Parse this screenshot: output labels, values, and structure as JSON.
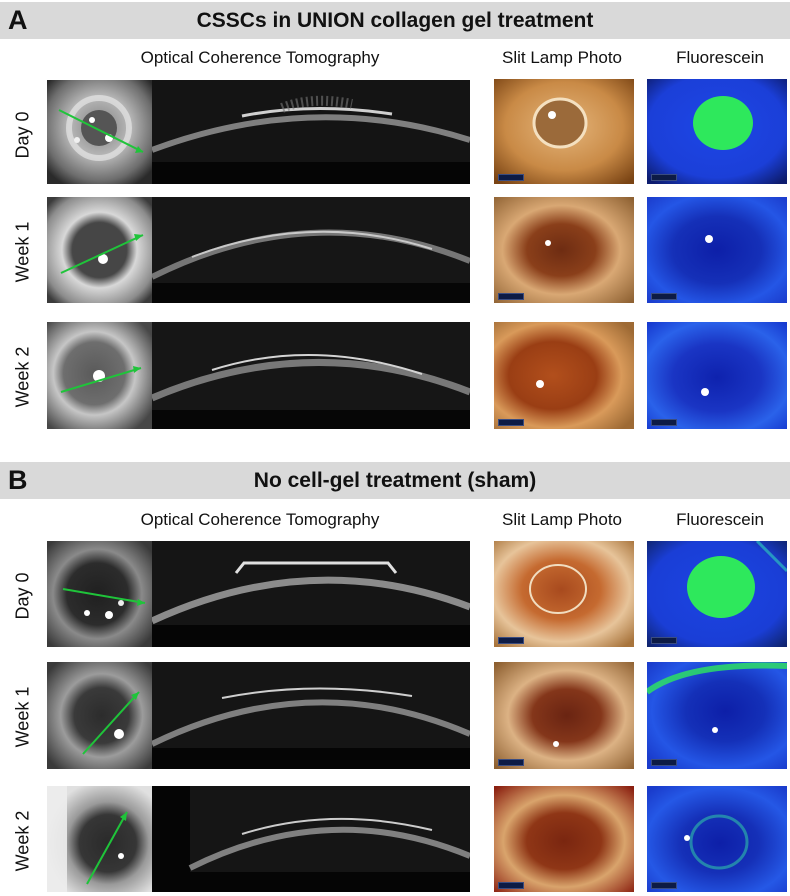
{
  "panels": [
    {
      "letter": "A",
      "title": "CSSCs in UNION collagen gel treatment",
      "headers": {
        "oct": "Optical Coherence Tomography",
        "slit": "Slit Lamp Photo",
        "fluor": "Fluorescein"
      },
      "rows": [
        "Day 0",
        "Week 1",
        "Week 2"
      ]
    },
    {
      "letter": "B",
      "title": "No cell-gel treatment (sham)",
      "headers": {
        "oct": "Optical Coherence Tomography",
        "slit": "Slit Lamp Photo",
        "fluor": "Fluorescein"
      },
      "rows": [
        "Day 0",
        "Week 1",
        "Week 2"
      ]
    }
  ],
  "colors": {
    "banner": "#d9d9d9",
    "scan_arrow": "#1fc43a",
    "fluor_blue": "#1b3fd8",
    "fluor_green": "#2ee85c",
    "slit_orange": "#c98a46"
  }
}
